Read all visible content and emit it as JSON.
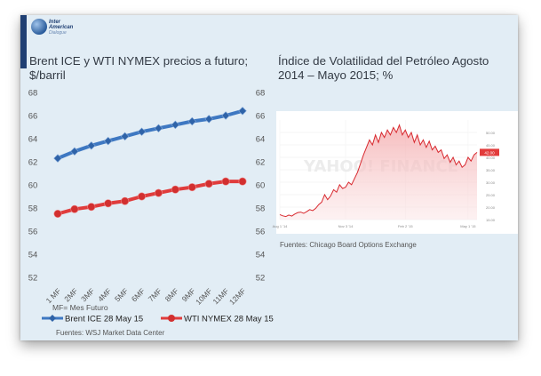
{
  "logo": {
    "line1": "Inter",
    "line2": "American",
    "line3": "Dialogue"
  },
  "left_chart": {
    "title_line1": "Brent ICE y WTI NYMEX precios a futuro;",
    "title_line2": "$/barril",
    "note": "MF= Mes Futuro",
    "source": "Fuentes: WSJ Market Data Center"
  },
  "right_chart": {
    "title_line1": "Índice de Volatilidad del Petróleo Agosto",
    "title_line2": "2014 – Mayo 2015; %",
    "source": "Fuentes: Chicago Board Options Exchange",
    "watermark": "YAHOO! FINANCE"
  },
  "colors": {
    "brent": "#3e78c2",
    "wti": "#e03c3c",
    "card_bg": "#e2edf5",
    "vol_line": "#d8282e"
  },
  "chart_data": [
    {
      "type": "line",
      "categories": [
        "1 MF",
        "2MF",
        "3MF",
        "4MF",
        "5MF",
        "6MF",
        "7MF",
        "8MF",
        "9MF",
        "10MF",
        "11MF",
        "12MF"
      ],
      "series": [
        {
          "name": "Brent ICE 28 May 15",
          "values": [
            62.3,
            62.9,
            63.4,
            63.8,
            64.2,
            64.6,
            64.9,
            65.2,
            65.5,
            65.7,
            66.0,
            66.4
          ]
        },
        {
          "name": "WTI NYMEX 28 May 15",
          "values": [
            57.5,
            57.9,
            58.1,
            58.4,
            58.6,
            59.0,
            59.3,
            59.6,
            59.8,
            60.1,
            60.3,
            60.3
          ]
        }
      ],
      "ylim": [
        52,
        68
      ],
      "yticks": [
        52,
        54,
        56,
        58,
        60,
        62,
        64,
        66,
        68
      ],
      "grid": false,
      "legend": "bottom"
    },
    {
      "type": "area",
      "xticks": [
        "Aug 1 '14",
        "Nov 3 '14",
        "Feb 2 '15",
        "May 1 '15"
      ],
      "yticks": [
        "15.00",
        "20.00",
        "25.00",
        "30.00",
        "35.00",
        "40.00",
        "45.00",
        "50.00"
      ],
      "ylim": [
        15,
        55
      ],
      "current_value": "42.00",
      "values": [
        17,
        16.5,
        16.2,
        16.8,
        16.4,
        17.2,
        17.8,
        18.0,
        17.5,
        18.2,
        19,
        18.6,
        19.5,
        21,
        22,
        25,
        23,
        24.5,
        27,
        26,
        29,
        27.5,
        28,
        30,
        29,
        31.5,
        34,
        37.5,
        41,
        44,
        47,
        45,
        49,
        46,
        50,
        48,
        51,
        49,
        52,
        50,
        53,
        49,
        51,
        48,
        50,
        46,
        49,
        45,
        47,
        44,
        46.5,
        43,
        44.5,
        42,
        43,
        39.5,
        41,
        38,
        40,
        37,
        38.5,
        36,
        37,
        40,
        38.5,
        41,
        42
      ]
    }
  ]
}
